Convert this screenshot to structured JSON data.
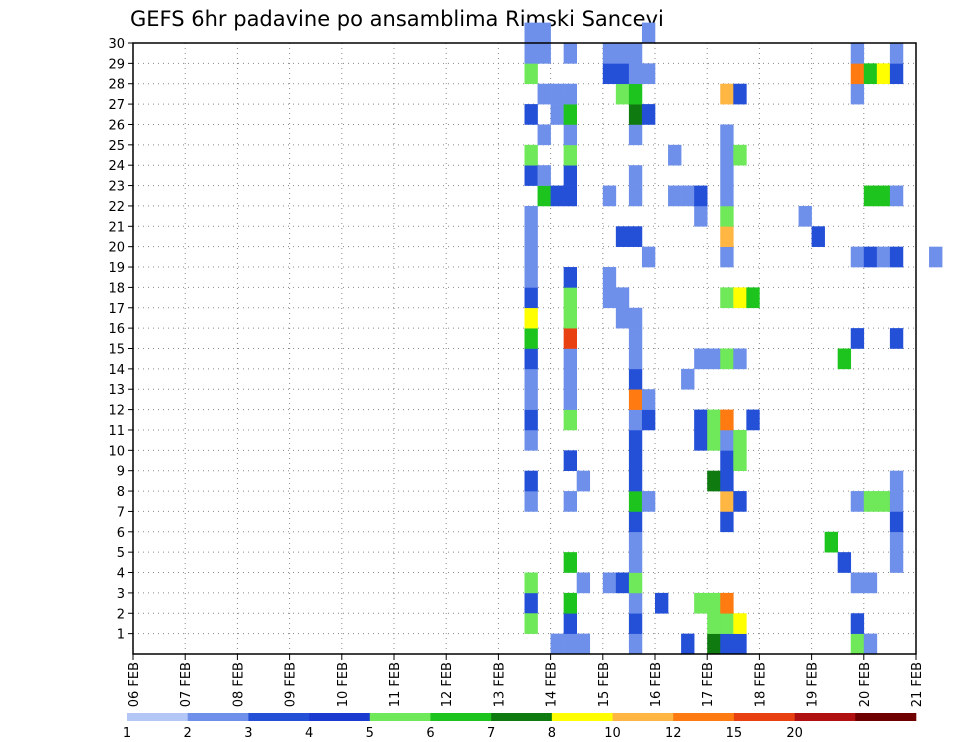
{
  "chart_data": {
    "type": "heatmap",
    "title": "GEFS 6hr padavine po ansamblima Rimski Sancevi",
    "xlabel": "",
    "ylabel": "",
    "x_tick_labels": [
      "06 FEB",
      "07 FEB",
      "08 FEB",
      "09 FEB",
      "10 FEB",
      "11 FEB",
      "12 FEB",
      "13 FEB",
      "14 FEB",
      "15 FEB",
      "16 FEB",
      "17 FEB",
      "18 FEB",
      "19 FEB",
      "20 FEB",
      "21 FEB"
    ],
    "x_range_days": [
      0,
      15
    ],
    "steps_per_day": 4,
    "y_tick_labels": [
      "1",
      "2",
      "3",
      "4",
      "5",
      "6",
      "7",
      "8",
      "9",
      "10",
      "11",
      "12",
      "13",
      "14",
      "15",
      "16",
      "17",
      "18",
      "19",
      "20",
      "21",
      "22",
      "23",
      "24",
      "25",
      "26",
      "27",
      "28",
      "29",
      "30"
    ],
    "y_range_members": [
      0,
      30
    ],
    "grid": "dotted",
    "legend_placement": "bottom",
    "legend": {
      "colors": [
        "#b4c6f5",
        "#6e90ea",
        "#2450d8",
        "#1a3ad0",
        "#6fe85a",
        "#1ec41e",
        "#0f7a0f",
        "#ffff00",
        "#ffb642",
        "#ff7a10",
        "#e84010",
        "#b01010",
        "#700000"
      ],
      "labels": [
        "1",
        "2",
        "3",
        "4",
        "5",
        "6",
        "7",
        "8",
        "10",
        "12",
        "15",
        "20"
      ]
    },
    "cells": [
      [
        30,
        2,
        2
      ],
      [
        30,
        3,
        4
      ],
      [
        30,
        1,
        3.5
      ],
      [
        30,
        7,
        1
      ],
      [
        30,
        8,
        2
      ],
      [
        30,
        10,
        1
      ],
      [
        30,
        11,
        2
      ],
      [
        30,
        12,
        1
      ],
      [
        30,
        13,
        1
      ],
      [
        30,
        14,
        2
      ],
      [
        30,
        15,
        5
      ],
      [
        30,
        16,
        7
      ],
      [
        30,
        17,
        2
      ],
      [
        30,
        18,
        1
      ],
      [
        30,
        19,
        1
      ],
      [
        30,
        20,
        1
      ],
      [
        30,
        21,
        1
      ],
      [
        30,
        23,
        2
      ],
      [
        30,
        24,
        3.5
      ],
      [
        30,
        26,
        2
      ],
      [
        30,
        28,
        3
      ],
      [
        30,
        29,
        1
      ],
      [
        30,
        30,
        1
      ],
      [
        31,
        22,
        5
      ],
      [
        31,
        23,
        1
      ],
      [
        31,
        25,
        1
      ],
      [
        31,
        27,
        1
      ],
      [
        31,
        29,
        1
      ],
      [
        31,
        30,
        1
      ],
      [
        32,
        22,
        2
      ],
      [
        32,
        26,
        1
      ],
      [
        32,
        27,
        1
      ],
      [
        32,
        0,
        1
      ],
      [
        33,
        0,
        1
      ],
      [
        33,
        1,
        2
      ],
      [
        33,
        2,
        5
      ],
      [
        33,
        4,
        5
      ],
      [
        33,
        7,
        1
      ],
      [
        33,
        9,
        2
      ],
      [
        33,
        11,
        3.5
      ],
      [
        33,
        12,
        1
      ],
      [
        33,
        13,
        1
      ],
      [
        33,
        14,
        1
      ],
      [
        33,
        15,
        12
      ],
      [
        33,
        16,
        3.5
      ],
      [
        33,
        17,
        3.5
      ],
      [
        33,
        18,
        2
      ],
      [
        33,
        22,
        2
      ],
      [
        33,
        23,
        2
      ],
      [
        33,
        24,
        3.5
      ],
      [
        33,
        25,
        1
      ],
      [
        33,
        26,
        5
      ],
      [
        33,
        27,
        1
      ],
      [
        33,
        29,
        1
      ],
      [
        34,
        0,
        1
      ],
      [
        34,
        3,
        1
      ],
      [
        34,
        8,
        1
      ],
      [
        36,
        3,
        1
      ],
      [
        36,
        17,
        1
      ],
      [
        36,
        18,
        1
      ],
      [
        36,
        22,
        1
      ],
      [
        36,
        28,
        2
      ],
      [
        36,
        29,
        1
      ],
      [
        37,
        3,
        2
      ],
      [
        37,
        16,
        1
      ],
      [
        37,
        17,
        1
      ],
      [
        37,
        20,
        2
      ],
      [
        37,
        27,
        3.5
      ],
      [
        37,
        28,
        2
      ],
      [
        37,
        29,
        1
      ],
      [
        38,
        0,
        1
      ],
      [
        38,
        1,
        2
      ],
      [
        38,
        2,
        1
      ],
      [
        38,
        3,
        3.5
      ],
      [
        38,
        4,
        1
      ],
      [
        38,
        5,
        1
      ],
      [
        38,
        6,
        2
      ],
      [
        38,
        7,
        5
      ],
      [
        38,
        8,
        2
      ],
      [
        38,
        9,
        2
      ],
      [
        38,
        10,
        2
      ],
      [
        38,
        11,
        1
      ],
      [
        38,
        12,
        10
      ],
      [
        38,
        13,
        2
      ],
      [
        38,
        14,
        1
      ],
      [
        38,
        15,
        1
      ],
      [
        38,
        16,
        1
      ],
      [
        38,
        20,
        2
      ],
      [
        38,
        22,
        1
      ],
      [
        38,
        23,
        1
      ],
      [
        38,
        25,
        1
      ],
      [
        38,
        26,
        6
      ],
      [
        38,
        27,
        5
      ],
      [
        38,
        28,
        1
      ],
      [
        38,
        29,
        1
      ],
      [
        39,
        7,
        1
      ],
      [
        39,
        11,
        2
      ],
      [
        39,
        12,
        1
      ],
      [
        39,
        19,
        1
      ],
      [
        39,
        26,
        2
      ],
      [
        39,
        28,
        1
      ],
      [
        39,
        30,
        1
      ],
      [
        40,
        2,
        2
      ],
      [
        41,
        22,
        1
      ],
      [
        41,
        24,
        1
      ],
      [
        42,
        0,
        2
      ],
      [
        42,
        22,
        1
      ],
      [
        42,
        13,
        1
      ],
      [
        43,
        2,
        3.5
      ],
      [
        43,
        10,
        2
      ],
      [
        43,
        11,
        2
      ],
      [
        43,
        14,
        1
      ],
      [
        43,
        21,
        1
      ],
      [
        43,
        22,
        2
      ],
      [
        44,
        0,
        6
      ],
      [
        44,
        1,
        3.5
      ],
      [
        44,
        2,
        3.5
      ],
      [
        44,
        8,
        6
      ],
      [
        44,
        10,
        3.5
      ],
      [
        44,
        11,
        3.5
      ],
      [
        44,
        14,
        1
      ],
      [
        45,
        0,
        2
      ],
      [
        45,
        1,
        3.5
      ],
      [
        45,
        2,
        10
      ],
      [
        45,
        6,
        2
      ],
      [
        45,
        7,
        8
      ],
      [
        45,
        8,
        2
      ],
      [
        45,
        9,
        2
      ],
      [
        45,
        10,
        1
      ],
      [
        45,
        11,
        10
      ],
      [
        45,
        14,
        3.5
      ],
      [
        45,
        17,
        3.5
      ],
      [
        45,
        19,
        1
      ],
      [
        45,
        20,
        8
      ],
      [
        45,
        21,
        3.5
      ],
      [
        45,
        22,
        1
      ],
      [
        45,
        23,
        1
      ],
      [
        45,
        24,
        1
      ],
      [
        45,
        25,
        1
      ],
      [
        45,
        27,
        8
      ],
      [
        46,
        0,
        2
      ],
      [
        46,
        1,
        7
      ],
      [
        46,
        7,
        2
      ],
      [
        46,
        9,
        3.5
      ],
      [
        46,
        10,
        3.5
      ],
      [
        46,
        14,
        1
      ],
      [
        46,
        17,
        7
      ],
      [
        46,
        24,
        3.5
      ],
      [
        46,
        27,
        2
      ],
      [
        47,
        11,
        2
      ],
      [
        47,
        17,
        5
      ],
      [
        51,
        21,
        1
      ],
      [
        52,
        20,
        2
      ],
      [
        53,
        5,
        5
      ],
      [
        54,
        4,
        2
      ],
      [
        54,
        14,
        5
      ],
      [
        55,
        0,
        3.5
      ],
      [
        55,
        1,
        2
      ],
      [
        55,
        3,
        1
      ],
      [
        55,
        7,
        1
      ],
      [
        55,
        15,
        2
      ],
      [
        55,
        19,
        1
      ],
      [
        55,
        27,
        1
      ],
      [
        55,
        28,
        10
      ],
      [
        55,
        29,
        1
      ],
      [
        56,
        0,
        1
      ],
      [
        56,
        3,
        1
      ],
      [
        56,
        7,
        3.5
      ],
      [
        56,
        19,
        2
      ],
      [
        56,
        22,
        5
      ],
      [
        56,
        28,
        5
      ],
      [
        57,
        7,
        3.5
      ],
      [
        57,
        19,
        1
      ],
      [
        57,
        22,
        5
      ],
      [
        57,
        28,
        7
      ],
      [
        58,
        4,
        1
      ],
      [
        58,
        5,
        1
      ],
      [
        58,
        6,
        2
      ],
      [
        58,
        7,
        1
      ],
      [
        58,
        8,
        1
      ],
      [
        58,
        15,
        2
      ],
      [
        58,
        19,
        2
      ],
      [
        58,
        22,
        1
      ],
      [
        58,
        28,
        2
      ],
      [
        58,
        29,
        1
      ],
      [
        61,
        19,
        1
      ],
      [
        65,
        15,
        1
      ],
      [
        69,
        21,
        1
      ],
      [
        70,
        13,
        1
      ],
      [
        70,
        23,
        1
      ],
      [
        72,
        3,
        12
      ],
      [
        72,
        15,
        2
      ],
      [
        72,
        24,
        3.5
      ],
      [
        73,
        24,
        3.5
      ],
      [
        73,
        25,
        2
      ],
      [
        74,
        1,
        2
      ],
      [
        74,
        24,
        2
      ],
      [
        74,
        25,
        1
      ],
      [
        75,
        25,
        1
      ],
      [
        78,
        3,
        7
      ],
      [
        79,
        3,
        8
      ],
      [
        79,
        0,
        1
      ],
      [
        80,
        0,
        6
      ],
      [
        80,
        10,
        1
      ],
      [
        80,
        16,
        2
      ],
      [
        80,
        23,
        2
      ],
      [
        80,
        24,
        1
      ],
      [
        81,
        23,
        10
      ],
      [
        82,
        23,
        1
      ],
      [
        82,
        9,
        3.5
      ],
      [
        83,
        10,
        1
      ],
      [
        84,
        10,
        1
      ],
      [
        84,
        24,
        1
      ],
      [
        85,
        6,
        2
      ],
      [
        86,
        6,
        2
      ],
      [
        86,
        21,
        3.5
      ],
      [
        87,
        21,
        7
      ],
      [
        88,
        6,
        1
      ],
      [
        88,
        22,
        5
      ]
    ]
  }
}
